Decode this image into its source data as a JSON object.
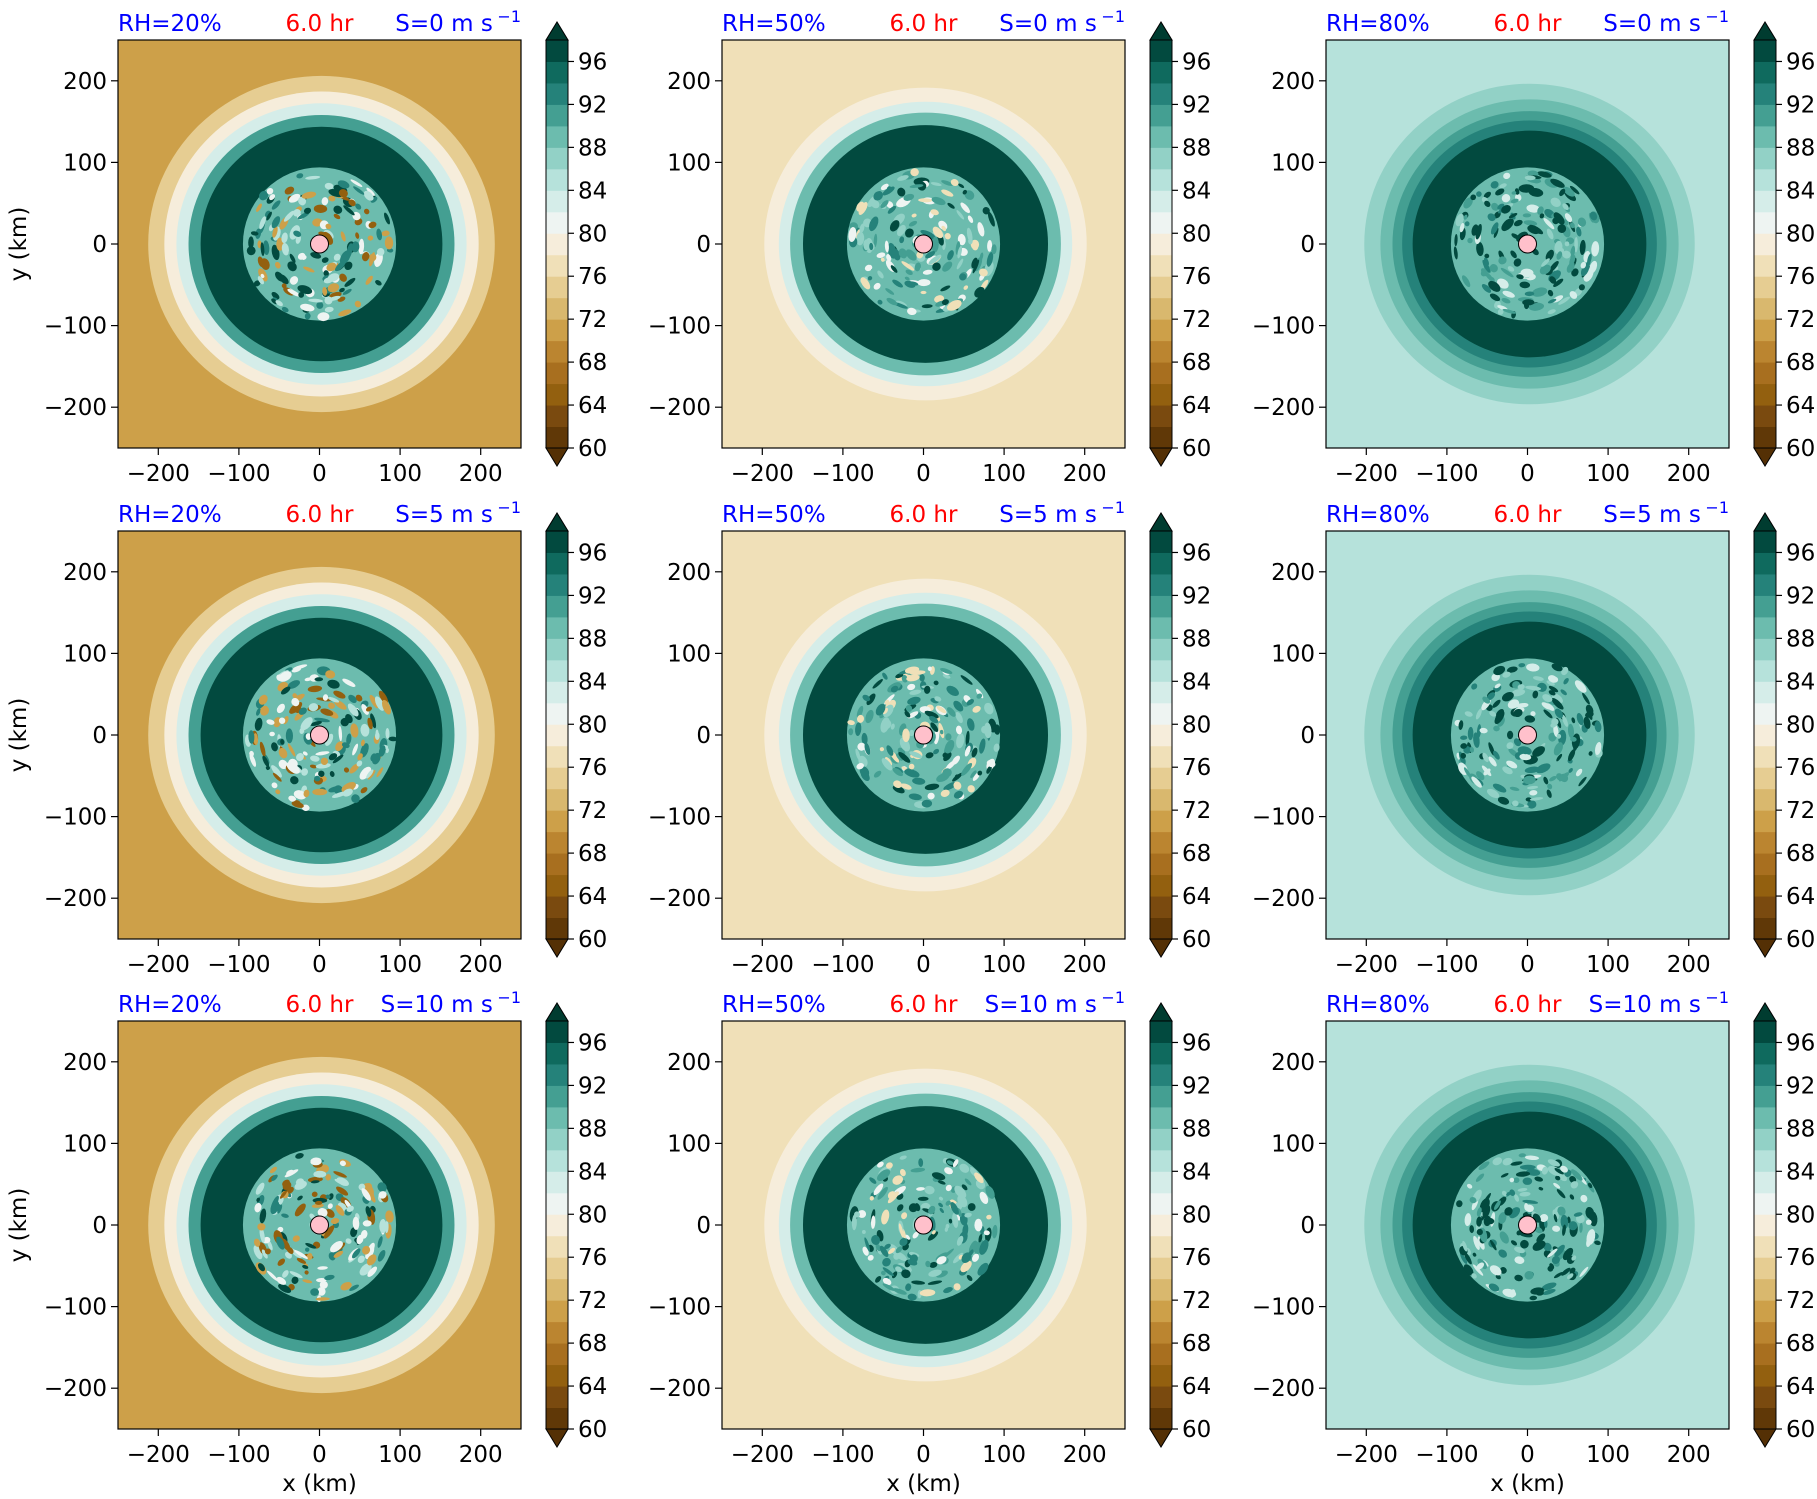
{
  "chart_data": {
    "type": "heatmap",
    "figure_layout": "3x3 grid of filled-contour panels",
    "color_levels": [
      60,
      62,
      64,
      66,
      68,
      70,
      72,
      74,
      76,
      78,
      80,
      82,
      84,
      86,
      88,
      90,
      92,
      94,
      96,
      98
    ],
    "colorbar_ticks": [
      "60",
      "64",
      "68",
      "72",
      "76",
      "80",
      "84",
      "88",
      "92",
      "96"
    ],
    "colormap": "BrBG",
    "colorbar_extend": "both",
    "x_ticks": [
      "−200",
      "−100",
      "0",
      "100",
      "200"
    ],
    "y_ticks": [
      "200",
      "100",
      "0",
      "−100",
      "−200"
    ],
    "xlim": [
      -250,
      250
    ],
    "ylim": [
      -250,
      250
    ],
    "xlabel": "x (km)",
    "ylabel": "y (km)",
    "center_marker_color": "#ffc0cb",
    "time_label": "6.0 hr",
    "panels": [
      {
        "rh": "RH=20%",
        "shear": "S=0 m s",
        "row": 0,
        "col": 0
      },
      {
        "rh": "RH=50%",
        "shear": "S=0 m s",
        "row": 0,
        "col": 1
      },
      {
        "rh": "RH=80%",
        "shear": "S=0 m s",
        "row": 0,
        "col": 2
      },
      {
        "rh": "RH=20%",
        "shear": "S=5 m s",
        "row": 1,
        "col": 0
      },
      {
        "rh": "RH=50%",
        "shear": "S=5 m s",
        "row": 1,
        "col": 1
      },
      {
        "rh": "RH=80%",
        "shear": "S=5 m s",
        "row": 1,
        "col": 2
      },
      {
        "rh": "RH=20%",
        "shear": "S=10 m s",
        "row": 2,
        "col": 0
      },
      {
        "rh": "RH=50%",
        "shear": "S=10 m s",
        "row": 2,
        "col": 1
      },
      {
        "rh": "RH=80%",
        "shear": "S=10 m s",
        "row": 2,
        "col": 2
      }
    ],
    "shear_unit_exponent": "−1",
    "background_by_rh": {
      "RH=20%": 70,
      "RH=50%": 77,
      "RH=80%": 84.5
    }
  }
}
